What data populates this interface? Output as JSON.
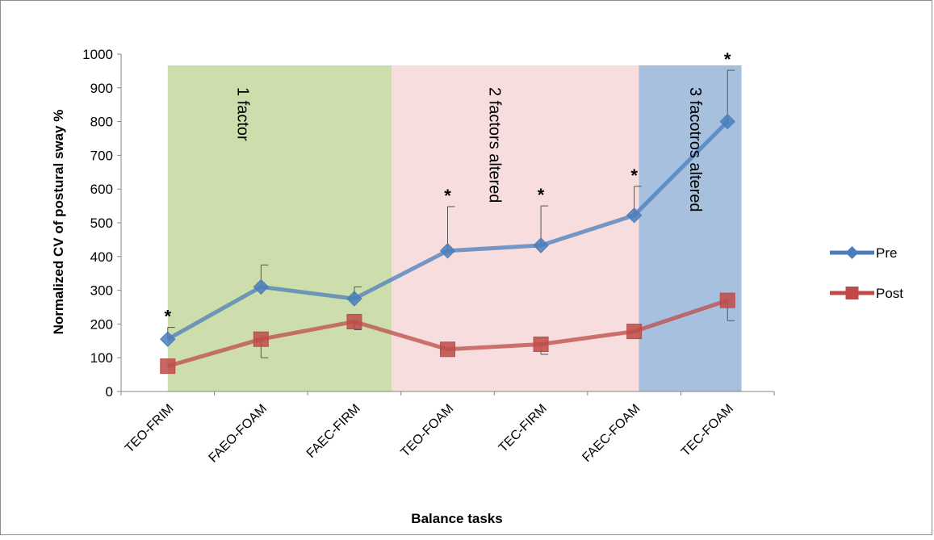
{
  "chart_data": {
    "type": "line",
    "title": "",
    "xlabel": "Balance tasks",
    "ylabel": "Normalized CV of postural sway %",
    "ylim": [
      0,
      1000
    ],
    "yticks": [
      0,
      100,
      200,
      300,
      400,
      500,
      600,
      700,
      800,
      900,
      1000
    ],
    "grid": false,
    "legend_position": "right",
    "categories": [
      "TEO-FRIM",
      "FAEO-FOAM",
      "FAEC-FIRM",
      "TEO-FOAM",
      "TEC-FIRM",
      "FAEC-FOAM",
      "TEC-FOAM"
    ],
    "series": [
      {
        "name": "Pre",
        "color": "#4a7ebb",
        "marker": "diamond",
        "values": [
          155,
          310,
          275,
          417,
          433,
          522,
          800
        ],
        "error_upper": [
          190,
          375,
          310,
          548,
          550,
          608,
          952
        ]
      },
      {
        "name": "Post",
        "color": "#be4b48",
        "marker": "square",
        "values": [
          75,
          155,
          207,
          125,
          140,
          178,
          270
        ],
        "error_lower": [
          75,
          100,
          183,
          125,
          110,
          178,
          210
        ]
      }
    ],
    "regions": [
      {
        "label": "1 factor",
        "from": 0,
        "to": 2.4,
        "color": "#9bbb59"
      },
      {
        "label": "2 factors  altered",
        "from": 2.4,
        "to": 5.05,
        "color": "#f2c7c7"
      },
      {
        "label": "3 facotros  altered",
        "from": 5.05,
        "to": 6.15,
        "color": "#4f81bd"
      }
    ],
    "significance_marker": "*",
    "significance": [
      {
        "index": 0,
        "y": 190
      },
      {
        "index": 3,
        "y": 548
      },
      {
        "index": 4,
        "y": 550
      },
      {
        "index": 5,
        "y": 608
      },
      {
        "index": 6,
        "y": 952
      }
    ]
  }
}
